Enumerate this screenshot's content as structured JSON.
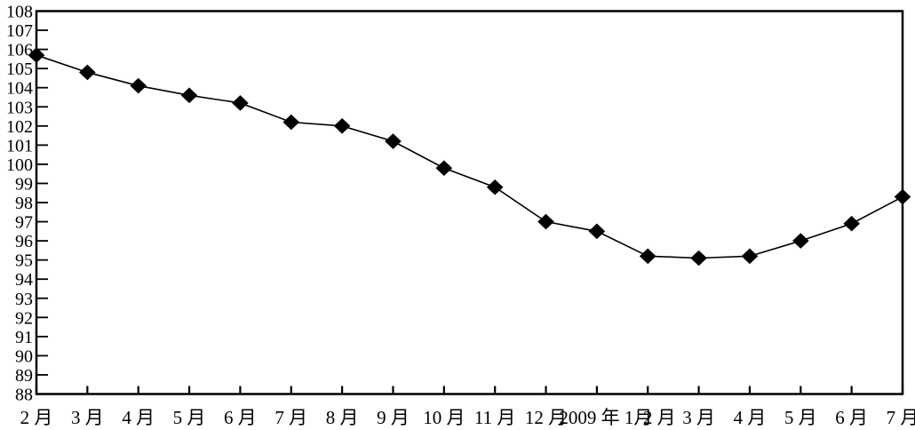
{
  "chart_data": {
    "type": "line",
    "title": "",
    "xlabel": "",
    "ylabel": "",
    "categories": [
      "2 月",
      "3 月",
      "4 月",
      "5 月",
      "6 月",
      "7 月",
      "8 月",
      "9 月",
      "10 月",
      "11 月",
      "12 月",
      "2009 年 1月",
      "2 月",
      "3 月",
      "4 月",
      "5 月",
      "6 月",
      "7 月"
    ],
    "values": [
      105.7,
      104.8,
      104.1,
      103.6,
      103.2,
      102.2,
      102.0,
      101.2,
      99.8,
      98.8,
      97.0,
      96.5,
      95.2,
      95.1,
      95.2,
      96.0,
      96.9,
      98.3
    ],
    "ylim": [
      88,
      108
    ],
    "ytick_step": 1,
    "y_tick_labels": [
      "108",
      "107",
      "106",
      "105",
      "104",
      "103",
      "102",
      "101",
      "100",
      "99",
      "98",
      "97",
      "96",
      "95",
      "94",
      "93",
      "92",
      "91",
      "90",
      "89",
      "88"
    ],
    "grid": false,
    "legend_position": "none",
    "marker": "diamond",
    "colors": {
      "line": "#000000",
      "marker": "#000000",
      "axis": "#000000",
      "text": "#000000",
      "background": "#ffffff"
    }
  }
}
